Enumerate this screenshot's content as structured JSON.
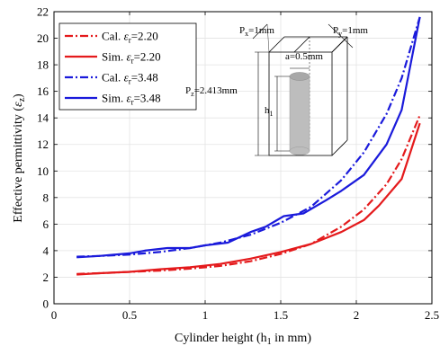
{
  "chart_data": {
    "type": "line",
    "xlabel_main": "Cylinder height (h",
    "xlabel_sub": "1",
    "xlabel_tail": " in mm)",
    "ylabel_main": "Effective permittivity (",
    "ylabel_symbol": "ε",
    "ylabel_sub": "z",
    "ylabel_tail": ")",
    "xlim": [
      0,
      2.5
    ],
    "ylim": [
      0,
      22
    ],
    "xticks": [
      0,
      0.5,
      1,
      1.5,
      2,
      2.5
    ],
    "xtick_labels": [
      "0",
      "0.5",
      "1",
      "1.5",
      "2",
      "2.5"
    ],
    "yticks": [
      0,
      2,
      4,
      6,
      8,
      10,
      12,
      14,
      16,
      18,
      20,
      22
    ],
    "ytick_labels": [
      "0",
      "2",
      "4",
      "6",
      "8",
      "10",
      "12",
      "14",
      "16",
      "18",
      "20",
      "22"
    ],
    "grid": true,
    "legend_position": "top-left",
    "series": [
      {
        "name": "Cal. εr=2.20",
        "name_prefix": "Cal. ",
        "name_symbol": "ε",
        "name_sub": "r",
        "name_value": "=2.20",
        "color": "#e41a1c",
        "dash": "dashdot",
        "x": [
          0.15,
          0.3,
          0.5,
          0.7,
          0.9,
          1.1,
          1.3,
          1.5,
          1.7,
          1.9,
          2.05,
          2.2,
          2.3,
          2.42
        ],
        "y": [
          2.25,
          2.3,
          2.4,
          2.5,
          2.65,
          2.85,
          3.2,
          3.75,
          4.5,
          5.8,
          7.1,
          9.0,
          10.9,
          14.2
        ]
      },
      {
        "name": "Sim. εr=2.20",
        "name_prefix": "Sim. ",
        "name_symbol": "ε",
        "name_sub": "r",
        "name_value": "=2.20",
        "color": "#e41a1c",
        "dash": "solid",
        "x": [
          0.15,
          0.3,
          0.5,
          0.7,
          0.9,
          1.1,
          1.3,
          1.5,
          1.7,
          1.9,
          2.05,
          2.15,
          2.3,
          2.42
        ],
        "y": [
          2.2,
          2.3,
          2.4,
          2.6,
          2.75,
          3.0,
          3.4,
          3.9,
          4.5,
          5.4,
          6.3,
          7.4,
          9.4,
          13.6
        ]
      },
      {
        "name": "Cal. εr=3.48",
        "name_prefix": "Cal. ",
        "name_symbol": "ε",
        "name_sub": "r",
        "name_value": "=3.48",
        "color": "#1a1adb",
        "dash": "dashdot",
        "x": [
          0.15,
          0.3,
          0.5,
          0.7,
          0.9,
          1.1,
          1.3,
          1.5,
          1.7,
          1.9,
          2.05,
          2.2,
          2.3,
          2.42
        ],
        "y": [
          3.55,
          3.6,
          3.7,
          3.9,
          4.2,
          4.6,
          5.2,
          6.1,
          7.3,
          9.3,
          11.4,
          14.3,
          17.0,
          21.6
        ]
      },
      {
        "name": "Sim. εr=3.48",
        "name_prefix": "Sim. ",
        "name_symbol": "ε",
        "name_sub": "r",
        "name_value": "=3.48",
        "color": "#1a1adb",
        "dash": "solid",
        "x": [
          0.15,
          0.3,
          0.5,
          0.6,
          0.75,
          0.9,
          1.0,
          1.15,
          1.3,
          1.4,
          1.52,
          1.65,
          1.8,
          1.9,
          2.05,
          2.2,
          2.3,
          2.42
        ],
        "y": [
          3.5,
          3.6,
          3.8,
          4.0,
          4.2,
          4.2,
          4.4,
          4.6,
          5.4,
          5.8,
          6.6,
          6.8,
          7.8,
          8.5,
          9.7,
          12.0,
          14.6,
          21.6
        ]
      }
    ],
    "inset": {
      "px_label": "P",
      "px_sub": "x",
      "px_value": "=1mm",
      "py_label": "P",
      "py_sub": "y",
      "py_value": "=1mm",
      "pz_label": "P",
      "pz_sub": "z",
      "pz_value": "=2.413mm",
      "a_label": "a=0.5mm",
      "h_label": "h",
      "h_sub": "1"
    }
  }
}
